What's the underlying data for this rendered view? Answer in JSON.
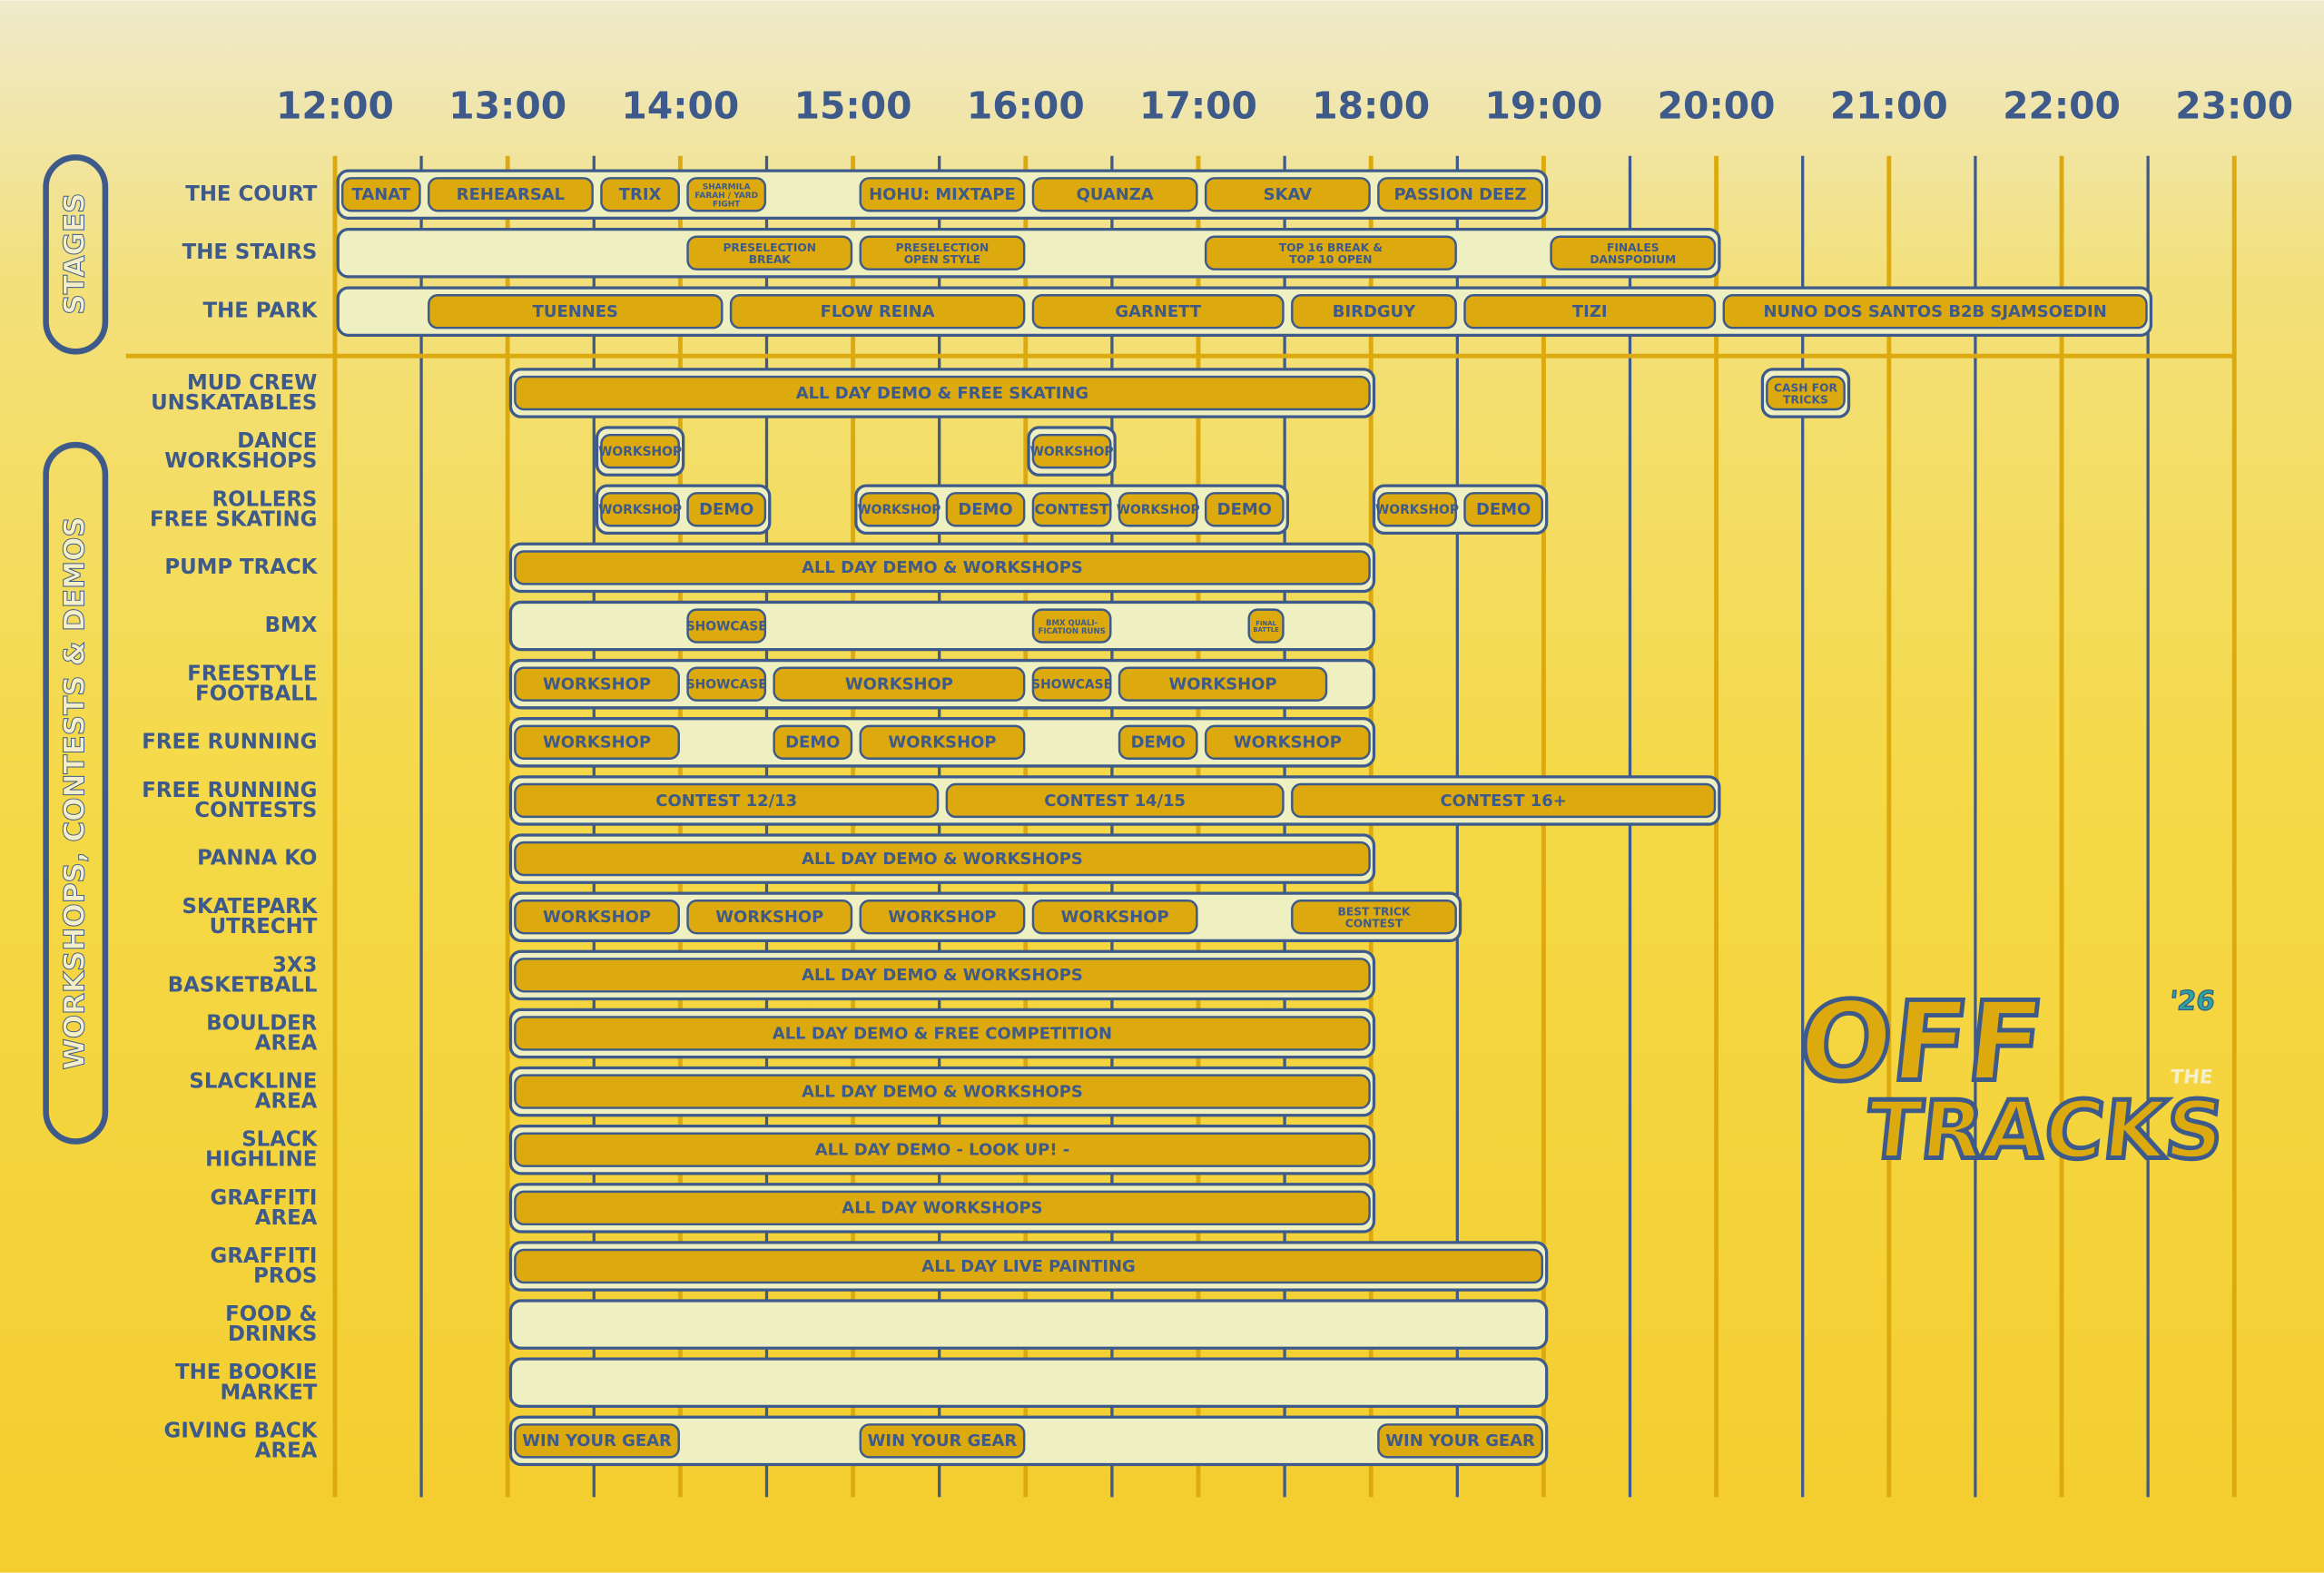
{
  "times": [
    "12:00",
    "13:00",
    "14:00",
    "15:00",
    "16:00",
    "17:00",
    "18:00",
    "19:00",
    "20:00",
    "21:00",
    "22:00",
    "23:00"
  ],
  "sections": [
    {
      "title": "STAGES",
      "rows": [
        {
          "label": "THE COURT",
          "blocks": [
            {
              "start": 12,
              "end": 19,
              "events": [
                {
                  "label": "TANAT",
                  "start": 12,
                  "end": 12.5
                },
                {
                  "label": "REHEARSAL",
                  "start": 12.5,
                  "end": 13.5
                },
                {
                  "label": "TRIX",
                  "start": 13.5,
                  "end": 14
                },
                {
                  "label": [
                    "SHARMILA",
                    "FARAH / YARD",
                    "FIGHT"
                  ],
                  "start": 14,
                  "end": 14.5
                },
                {
                  "label": "HOHU: MIXTAPE",
                  "start": 15,
                  "end": 16
                },
                {
                  "label": "QUANZA",
                  "start": 16,
                  "end": 17
                },
                {
                  "label": "SKAV",
                  "start": 17,
                  "end": 18
                },
                {
                  "label": "PASSION DEEZ",
                  "start": 18,
                  "end": 19
                }
              ]
            }
          ]
        },
        {
          "label": "THE STAIRS",
          "blocks": [
            {
              "start": 12,
              "end": 20,
              "events": [
                {
                  "label": [
                    "PRESELECTION",
                    "BREAK"
                  ],
                  "start": 14,
                  "end": 15
                },
                {
                  "label": [
                    "PRESELECTION",
                    "OPEN STYLE"
                  ],
                  "start": 15,
                  "end": 16
                },
                {
                  "label": [
                    "TOP 16 BREAK &",
                    "TOP 10 OPEN"
                  ],
                  "start": 17,
                  "end": 18.5
                },
                {
                  "label": [
                    "FINALES",
                    "DANSPODIUM"
                  ],
                  "start": 19,
                  "end": 20
                }
              ]
            }
          ]
        },
        {
          "label": "THE PARK",
          "blocks": [
            {
              "start": 12,
              "end": 22.5,
              "events": [
                {
                  "label": "TUENNES",
                  "start": 12.5,
                  "end": 14.25
                },
                {
                  "label": "FLOW REINA",
                  "start": 14.25,
                  "end": 16
                },
                {
                  "label": "GARNETT",
                  "start": 16,
                  "end": 17.5
                },
                {
                  "label": "BIRDGUY",
                  "start": 17.5,
                  "end": 18.5
                },
                {
                  "label": "TIZI",
                  "start": 18.5,
                  "end": 20
                },
                {
                  "label": "NUNO DOS SANTOS B2B SJAMSOEDIN",
                  "start": 20,
                  "end": 22.5
                }
              ]
            }
          ]
        }
      ]
    },
    {
      "title": "WORKSHOPS, CONTESTS & DEMOS",
      "rows": [
        {
          "label": [
            "MUD CREW",
            "UNSKATABLES"
          ],
          "blocks": [
            {
              "start": 13,
              "end": 18,
              "events": [
                {
                  "label": "ALL DAY DEMO & FREE SKATING",
                  "start": 13,
                  "end": 18
                }
              ]
            },
            {
              "start": 20.25,
              "end": 20.75,
              "events": [
                {
                  "label": [
                    "CASH FOR",
                    "TRICKS"
                  ],
                  "start": 20.25,
                  "end": 20.75
                }
              ]
            }
          ]
        },
        {
          "label": [
            "DANCE",
            "WORKSHOPS"
          ],
          "blocks": [
            {
              "start": 13.5,
              "end": 14,
              "events": [
                {
                  "label": "WORKSHOP",
                  "start": 13.5,
                  "end": 14
                }
              ]
            },
            {
              "start": 16,
              "end": 16.5,
              "events": [
                {
                  "label": "WORKSHOP",
                  "start": 16,
                  "end": 16.5
                }
              ]
            }
          ]
        },
        {
          "label": [
            "ROLLERS",
            "FREE SKATING"
          ],
          "blocks": [
            {
              "start": 13.5,
              "end": 14.5,
              "events": [
                {
                  "label": "WORKSHOP",
                  "start": 13.5,
                  "end": 14
                },
                {
                  "label": "DEMO",
                  "start": 14,
                  "end": 14.5
                }
              ]
            },
            {
              "start": 15,
              "end": 17.5,
              "events": [
                {
                  "label": "WORKSHOP",
                  "start": 15,
                  "end": 15.5
                },
                {
                  "label": "DEMO",
                  "start": 15.5,
                  "end": 16
                },
                {
                  "label": "CONTEST",
                  "start": 16,
                  "end": 16.5
                },
                {
                  "label": "WORKSHOP",
                  "start": 16.5,
                  "end": 17
                },
                {
                  "label": "DEMO",
                  "start": 17,
                  "end": 17.5
                }
              ]
            },
            {
              "start": 18,
              "end": 19,
              "events": [
                {
                  "label": "WORKSHOP",
                  "start": 18,
                  "end": 18.5
                },
                {
                  "label": "DEMO",
                  "start": 18.5,
                  "end": 19
                }
              ]
            }
          ]
        },
        {
          "label": "PUMP TRACK",
          "blocks": [
            {
              "start": 13,
              "end": 18,
              "events": [
                {
                  "label": "ALL DAY DEMO & WORKSHOPS",
                  "start": 13,
                  "end": 18
                }
              ]
            }
          ]
        },
        {
          "label": "BMX",
          "blocks": [
            {
              "start": 13,
              "end": 18,
              "events": [
                {
                  "label": "SHOWCASE",
                  "start": 14,
                  "end": 14.5
                },
                {
                  "label": [
                    "BMX QUALI-",
                    "FICATION RUNS"
                  ],
                  "start": 16,
                  "end": 16.5
                },
                {
                  "label": [
                    "FINAL",
                    "BATTLE"
                  ],
                  "start": 17.25,
                  "end": 17.5
                }
              ]
            }
          ]
        },
        {
          "label": [
            "FREESTYLE",
            "FOOTBALL"
          ],
          "blocks": [
            {
              "start": 13,
              "end": 18,
              "events": [
                {
                  "label": "WORKSHOP",
                  "start": 13,
                  "end": 14
                },
                {
                  "label": "SHOWCASE",
                  "start": 14,
                  "end": 14.5
                },
                {
                  "label": "WORKSHOP",
                  "start": 14.5,
                  "end": 16
                },
                {
                  "label": "SHOWCASE",
                  "start": 16,
                  "end": 16.5
                },
                {
                  "label": "WORKSHOP",
                  "start": 16.5,
                  "end": 17.75
                }
              ]
            }
          ]
        },
        {
          "label": "FREE RUNNING",
          "blocks": [
            {
              "start": 13,
              "end": 18,
              "events": [
                {
                  "label": "WORKSHOP",
                  "start": 13,
                  "end": 14
                },
                {
                  "label": "DEMO",
                  "start": 14.5,
                  "end": 15
                },
                {
                  "label": "WORKSHOP",
                  "start": 15,
                  "end": 16
                },
                {
                  "label": "DEMO",
                  "start": 16.5,
                  "end": 17
                },
                {
                  "label": "WORKSHOP",
                  "start": 17,
                  "end": 18
                }
              ]
            }
          ]
        },
        {
          "label": [
            "FREE RUNNING",
            "CONTESTS"
          ],
          "blocks": [
            {
              "start": 13,
              "end": 20,
              "events": [
                {
                  "label": "CONTEST 12/13",
                  "start": 13,
                  "end": 15.5
                },
                {
                  "label": "CONTEST 14/15",
                  "start": 15.5,
                  "end": 17.5
                },
                {
                  "label": "CONTEST 16+",
                  "start": 17.5,
                  "end": 20
                }
              ]
            }
          ]
        },
        {
          "label": "PANNA KO",
          "blocks": [
            {
              "start": 13,
              "end": 18,
              "events": [
                {
                  "label": "ALL DAY DEMO & WORKSHOPS",
                  "start": 13,
                  "end": 18
                }
              ]
            }
          ]
        },
        {
          "label": [
            "SKATEPARK",
            "UTRECHT"
          ],
          "blocks": [
            {
              "start": 13,
              "end": 18.5,
              "events": [
                {
                  "label": "WORKSHOP",
                  "start": 13,
                  "end": 14
                },
                {
                  "label": "WORKSHOP",
                  "start": 14,
                  "end": 15
                },
                {
                  "label": "WORKSHOP",
                  "start": 15,
                  "end": 16
                },
                {
                  "label": "WORKSHOP",
                  "start": 16,
                  "end": 17
                },
                {
                  "label": [
                    "BEST TRICK",
                    "CONTEST"
                  ],
                  "start": 17.5,
                  "end": 18.5
                }
              ]
            }
          ]
        },
        {
          "label": [
            "3X3",
            "BASKETBALL"
          ],
          "blocks": [
            {
              "start": 13,
              "end": 18,
              "events": [
                {
                  "label": "ALL DAY DEMO & WORKSHOPS",
                  "start": 13,
                  "end": 18
                }
              ]
            }
          ]
        },
        {
          "label": [
            "BOULDER",
            "AREA"
          ],
          "blocks": [
            {
              "start": 13,
              "end": 18,
              "events": [
                {
                  "label": "ALL DAY DEMO & FREE COMPETITION",
                  "start": 13,
                  "end": 18
                }
              ]
            }
          ]
        },
        {
          "label": [
            "SLACKLINE",
            "AREA"
          ],
          "blocks": [
            {
              "start": 13,
              "end": 18,
              "events": [
                {
                  "label": "ALL DAY DEMO & WORKSHOPS",
                  "start": 13,
                  "end": 18
                }
              ]
            }
          ]
        },
        {
          "label": [
            "SLACK",
            "HIGHLINE"
          ],
          "blocks": [
            {
              "start": 13,
              "end": 18,
              "events": [
                {
                  "label": "ALL DAY DEMO - LOOK UP! -",
                  "start": 13,
                  "end": 18
                }
              ]
            }
          ]
        },
        {
          "label": [
            "GRAFFITI",
            "AREA"
          ],
          "blocks": [
            {
              "start": 13,
              "end": 18,
              "events": [
                {
                  "label": "ALL DAY WORKSHOPS",
                  "start": 13,
                  "end": 18
                }
              ]
            }
          ]
        },
        {
          "label": [
            "GRAFFITI",
            "PROS"
          ],
          "blocks": [
            {
              "start": 13,
              "end": 19,
              "events": [
                {
                  "label": "ALL DAY LIVE PAINTING",
                  "start": 13,
                  "end": 19
                }
              ]
            }
          ]
        },
        {
          "label": [
            "FOOD &",
            "DRINKS"
          ],
          "blocks": [
            {
              "start": 13,
              "end": 19,
              "events": []
            }
          ]
        },
        {
          "label": [
            "THE BOOKIE",
            "MARKET"
          ],
          "blocks": [
            {
              "start": 13,
              "end": 19,
              "events": []
            }
          ]
        },
        {
          "label": [
            "GIVING BACK",
            "AREA"
          ],
          "blocks": [
            {
              "start": 13,
              "end": 19,
              "events": [
                {
                  "label": "WIN YOUR GEAR",
                  "start": 13,
                  "end": 14
                },
                {
                  "label": "WIN YOUR GEAR",
                  "start": 15,
                  "end": 16
                },
                {
                  "label": "WIN YOUR GEAR",
                  "start": 18,
                  "end": 19
                }
              ]
            }
          ]
        }
      ]
    }
  ],
  "logo": {
    "top": "OFF",
    "year": "'26",
    "the": "THE",
    "bottom": "TRACKS"
  }
}
